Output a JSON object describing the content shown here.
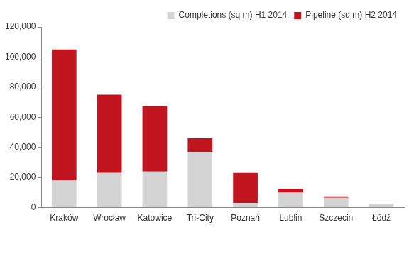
{
  "chart_data": {
    "type": "bar",
    "stacked": true,
    "grid": false,
    "legend": "upper right",
    "categories": [
      "Kraków",
      "Wrocław",
      "Katowice",
      "Tri-City",
      "Poznań",
      "Lublin",
      "Szczecin",
      "Łódź"
    ],
    "series": [
      {
        "name": "Completions (sq m) H1 2014",
        "color": "#d4d4d4",
        "values": [
          18000,
          23000,
          24000,
          37000,
          3000,
          10000,
          6500,
          2500
        ]
      },
      {
        "name": "Pipeline (sq m) H2 2014",
        "color": "#c0141e",
        "values": [
          87000,
          52000,
          43500,
          9000,
          20000,
          2500,
          1000,
          0
        ]
      }
    ],
    "ylim": [
      0,
      120000
    ],
    "yticks": [
      0,
      {
        "value": 20000,
        "label": "20,000"
      },
      {
        "value": 40000,
        "label": "40,000"
      },
      {
        "value": 60000,
        "label": "60,000"
      },
      {
        "value": 80000,
        "label": "80,000"
      },
      {
        "value": 100000,
        "label": "100,000"
      },
      {
        "value": 120000,
        "label": "120,000"
      }
    ]
  }
}
